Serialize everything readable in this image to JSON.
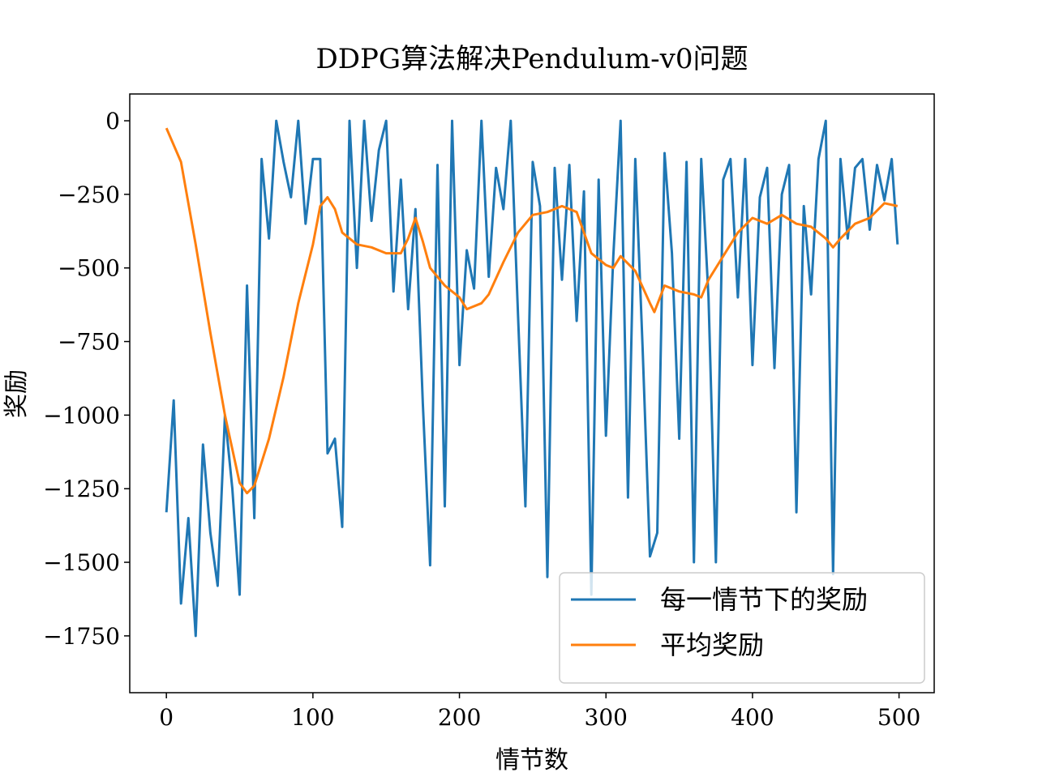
{
  "chart_data": {
    "type": "line",
    "title": "DDPG算法解决Pendulum-v0问题",
    "x_label": "情节数",
    "y_label": "奖励",
    "xlim": [
      -25,
      524
    ],
    "ylim": [
      -1943,
      91
    ],
    "xticks": [
      0,
      100,
      200,
      300,
      400,
      500
    ],
    "yticks": [
      0,
      {
        "value": -250,
        "label": "−250"
      },
      {
        "value": -500,
        "label": "−500"
      },
      {
        "value": -750,
        "label": "−750"
      },
      {
        "value": -1000,
        "label": "−1000"
      },
      {
        "value": -1250,
        "label": "−1250"
      },
      {
        "value": -1500,
        "label": "−1500"
      },
      {
        "value": -1750,
        "label": "−1750"
      }
    ],
    "legend": "lower right",
    "series": [
      {
        "name": "每一情节下的奖励",
        "color": "#1f77b4",
        "x": [
          0,
          5,
          10,
          15,
          20,
          25,
          30,
          35,
          40,
          45,
          50,
          55,
          60,
          65,
          70,
          75,
          80,
          85,
          90,
          95,
          100,
          105,
          110,
          115,
          120,
          125,
          130,
          135,
          140,
          145,
          150,
          155,
          160,
          165,
          170,
          175,
          180,
          185,
          190,
          195,
          200,
          205,
          210,
          215,
          220,
          225,
          230,
          235,
          240,
          245,
          250,
          255,
          260,
          265,
          270,
          275,
          280,
          285,
          290,
          295,
          300,
          305,
          310,
          315,
          320,
          325,
          330,
          335,
          340,
          345,
          350,
          355,
          360,
          365,
          370,
          375,
          380,
          385,
          390,
          395,
          400,
          405,
          410,
          415,
          420,
          425,
          430,
          435,
          440,
          445,
          450,
          455,
          460,
          465,
          470,
          475,
          480,
          485,
          490,
          495,
          499
        ],
        "values": [
          -1330,
          -950,
          -1640,
          -1350,
          -1750,
          -1100,
          -1400,
          -1580,
          -1000,
          -1250,
          -1610,
          -560,
          -1350,
          -130,
          -400,
          0,
          -140,
          -260,
          0,
          -350,
          -130,
          -130,
          -1130,
          -1080,
          -1380,
          0,
          -500,
          0,
          -340,
          -100,
          0,
          -580,
          -200,
          -640,
          -300,
          -960,
          -1510,
          -150,
          -1310,
          0,
          -830,
          -440,
          -570,
          0,
          -530,
          -160,
          -300,
          0,
          -660,
          -1310,
          -140,
          -290,
          -1550,
          -160,
          -540,
          -150,
          -680,
          -240,
          -1610,
          -200,
          -1070,
          -460,
          0,
          -1280,
          -130,
          -770,
          -1480,
          -1400,
          -110,
          -450,
          -1080,
          -140,
          -1500,
          -130,
          -600,
          -1500,
          -200,
          -130,
          -600,
          -130,
          -830,
          -260,
          -160,
          -840,
          -250,
          -150,
          -1330,
          -290,
          -590,
          -130,
          0,
          -1540,
          -130,
          -400,
          -160,
          -130,
          -370,
          -150,
          -270,
          -130,
          -420
        ]
      },
      {
        "name": "平均奖励",
        "color": "#ff7f0e",
        "x": [
          0,
          10,
          20,
          30,
          40,
          50,
          55,
          60,
          70,
          80,
          90,
          100,
          105,
          110,
          115,
          120,
          130,
          140,
          150,
          160,
          165,
          170,
          175,
          180,
          190,
          200,
          205,
          215,
          220,
          230,
          240,
          250,
          260,
          270,
          280,
          290,
          300,
          305,
          310,
          320,
          330,
          333,
          340,
          350,
          360,
          365,
          370,
          380,
          390,
          400,
          410,
          420,
          430,
          440,
          450,
          455,
          460,
          470,
          480,
          490,
          499
        ],
        "values": [
          -25,
          -140,
          -420,
          -720,
          -1000,
          -1230,
          -1265,
          -1240,
          -1080,
          -870,
          -620,
          -420,
          -290,
          -260,
          -300,
          -380,
          -420,
          -430,
          -450,
          -450,
          -400,
          -330,
          -410,
          -500,
          -560,
          -600,
          -640,
          -620,
          -590,
          -480,
          -380,
          -320,
          -310,
          -290,
          -310,
          -450,
          -490,
          -500,
          -460,
          -510,
          -620,
          -650,
          -560,
          -580,
          -590,
          -600,
          -540,
          -460,
          -380,
          -330,
          -350,
          -320,
          -350,
          -360,
          -400,
          -430,
          -400,
          -350,
          -330,
          -280,
          -290
        ]
      }
    ]
  }
}
